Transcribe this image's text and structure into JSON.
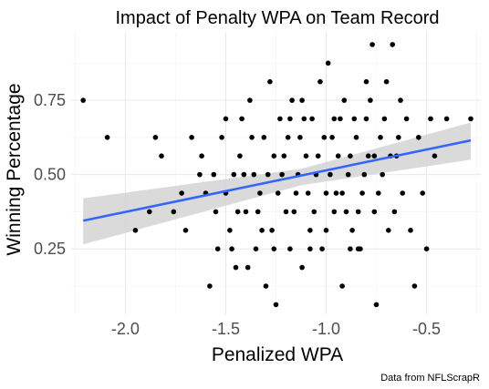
{
  "chart_data": {
    "type": "scatter",
    "title": "Impact of Penalty WPA on Team Record",
    "xlabel": "Penalized WPA",
    "ylabel": "Winning Percentage",
    "caption": "Data from NFLScrapR",
    "xlim": [
      -2.27,
      -0.23
    ],
    "ylim": [
      0.03,
      0.98
    ],
    "x_ticks": [
      -2.0,
      -1.5,
      -1.0,
      -0.5
    ],
    "x_tick_labels": [
      "-2.0",
      "-1.5",
      "-1.0",
      "-0.5"
    ],
    "y_ticks": [
      0.25,
      0.5,
      0.75
    ],
    "y_tick_labels": [
      "0.25",
      "0.50",
      "0.75"
    ],
    "grid": true,
    "points": [
      {
        "x": -2.21,
        "y": 0.75
      },
      {
        "x": -2.09,
        "y": 0.625
      },
      {
        "x": -1.95,
        "y": 0.3125
      },
      {
        "x": -1.88,
        "y": 0.375
      },
      {
        "x": -1.85,
        "y": 0.625
      },
      {
        "x": -1.82,
        "y": 0.5625
      },
      {
        "x": -1.76,
        "y": 0.375
      },
      {
        "x": -1.72,
        "y": 0.4375
      },
      {
        "x": -1.7,
        "y": 0.3125
      },
      {
        "x": -1.67,
        "y": 0.625
      },
      {
        "x": -1.63,
        "y": 0.5
      },
      {
        "x": -1.62,
        "y": 0.5625
      },
      {
        "x": -1.6,
        "y": 0.4375
      },
      {
        "x": -1.58,
        "y": 0.125
      },
      {
        "x": -1.56,
        "y": 0.5
      },
      {
        "x": -1.55,
        "y": 0.375
      },
      {
        "x": -1.52,
        "y": 0.625
      },
      {
        "x": -1.5,
        "y": 0.4375
      },
      {
        "x": -1.48,
        "y": 0.3125
      },
      {
        "x": -1.47,
        "y": 0.25
      },
      {
        "x": -1.45,
        "y": 0.1875
      },
      {
        "x": -1.43,
        "y": 0.5625
      },
      {
        "x": -1.42,
        "y": 0.6875
      },
      {
        "x": -1.4,
        "y": 0.375
      },
      {
        "x": -1.38,
        "y": 0.75
      },
      {
        "x": -1.36,
        "y": 0.5
      },
      {
        "x": -1.35,
        "y": 0.25
      },
      {
        "x": -1.33,
        "y": 0.4375
      },
      {
        "x": -1.31,
        "y": 0.625
      },
      {
        "x": -1.3,
        "y": 0.125
      },
      {
        "x": -1.28,
        "y": 0.8125
      },
      {
        "x": -1.27,
        "y": 0.3125
      },
      {
        "x": -1.26,
        "y": 0.5625
      },
      {
        "x": -1.25,
        "y": 0.0625
      },
      {
        "x": -1.23,
        "y": 0.6875
      },
      {
        "x": -1.22,
        "y": 0.5
      },
      {
        "x": -1.2,
        "y": 0.375
      },
      {
        "x": -1.18,
        "y": 0.25
      },
      {
        "x": -1.17,
        "y": 0.75
      },
      {
        "x": -1.15,
        "y": 0.4375
      },
      {
        "x": -1.13,
        "y": 0.625
      },
      {
        "x": -1.12,
        "y": 0.1875
      },
      {
        "x": -1.1,
        "y": 0.5625
      },
      {
        "x": -1.08,
        "y": 0.3125
      },
      {
        "x": -1.07,
        "y": 0.6875
      },
      {
        "x": -1.05,
        "y": 0.5
      },
      {
        "x": -1.03,
        "y": 0.8125
      },
      {
        "x": -1.02,
        "y": 0.25
      },
      {
        "x": -1.0,
        "y": 0.4375
      },
      {
        "x": -0.99,
        "y": 0.875
      },
      {
        "x": -0.97,
        "y": 0.625
      },
      {
        "x": -0.96,
        "y": 0.375
      },
      {
        "x": -0.94,
        "y": 0.5625
      },
      {
        "x": -0.92,
        "y": 0.125
      },
      {
        "x": -0.91,
        "y": 0.75
      },
      {
        "x": -0.89,
        "y": 0.5
      },
      {
        "x": -0.87,
        "y": 0.3125
      },
      {
        "x": -0.86,
        "y": 0.6875
      },
      {
        "x": -0.84,
        "y": 0.25
      },
      {
        "x": -0.82,
        "y": 0.4375
      },
      {
        "x": -0.8,
        "y": 0.8125
      },
      {
        "x": -0.79,
        "y": 0.5625
      },
      {
        "x": -0.77,
        "y": 0.9375
      },
      {
        "x": -0.76,
        "y": 0.375
      },
      {
        "x": -0.75,
        "y": 0.0625
      },
      {
        "x": -0.73,
        "y": 0.625
      },
      {
        "x": -0.72,
        "y": 0.5
      },
      {
        "x": -0.7,
        "y": 0.8125
      },
      {
        "x": -0.69,
        "y": 0.3125
      },
      {
        "x": -0.67,
        "y": 0.9375
      },
      {
        "x": -0.65,
        "y": 0.5625
      },
      {
        "x": -0.63,
        "y": 0.75
      },
      {
        "x": -0.62,
        "y": 0.4375
      },
      {
        "x": -0.6,
        "y": 0.6875
      },
      {
        "x": -0.58,
        "y": 0.3125
      },
      {
        "x": -0.56,
        "y": 0.125
      },
      {
        "x": -0.54,
        "y": 0.625
      },
      {
        "x": -0.52,
        "y": 0.4375
      },
      {
        "x": -0.5,
        "y": 0.25
      },
      {
        "x": -0.48,
        "y": 0.6875
      },
      {
        "x": -0.46,
        "y": 0.5625
      },
      {
        "x": -0.4,
        "y": 0.6875
      },
      {
        "x": -0.28,
        "y": 0.6875
      },
      {
        "x": -1.46,
        "y": 0.5
      },
      {
        "x": -1.37,
        "y": 0.625
      },
      {
        "x": -1.34,
        "y": 0.375
      },
      {
        "x": -1.29,
        "y": 0.5
      },
      {
        "x": -1.24,
        "y": 0.4375
      },
      {
        "x": -1.21,
        "y": 0.5625
      },
      {
        "x": -1.19,
        "y": 0.625
      },
      {
        "x": -1.16,
        "y": 0.375
      },
      {
        "x": -1.14,
        "y": 0.5
      },
      {
        "x": -1.11,
        "y": 0.6875
      },
      {
        "x": -1.09,
        "y": 0.4375
      },
      {
        "x": -1.06,
        "y": 0.375
      },
      {
        "x": -1.04,
        "y": 0.5625
      },
      {
        "x": -1.01,
        "y": 0.625
      },
      {
        "x": -0.98,
        "y": 0.5
      },
      {
        "x": -0.95,
        "y": 0.4375
      },
      {
        "x": -0.93,
        "y": 0.6875
      },
      {
        "x": -0.9,
        "y": 0.375
      },
      {
        "x": -0.88,
        "y": 0.5625
      },
      {
        "x": -0.85,
        "y": 0.625
      },
      {
        "x": -0.83,
        "y": 0.25
      },
      {
        "x": -0.81,
        "y": 0.5
      },
      {
        "x": -0.78,
        "y": 0.75
      },
      {
        "x": -0.74,
        "y": 0.4375
      },
      {
        "x": -0.71,
        "y": 0.6875
      },
      {
        "x": -0.68,
        "y": 0.5625
      },
      {
        "x": -0.66,
        "y": 0.375
      },
      {
        "x": -0.64,
        "y": 0.625
      },
      {
        "x": -1.54,
        "y": 0.25
      },
      {
        "x": -1.5,
        "y": 0.6875
      },
      {
        "x": -1.44,
        "y": 0.375
      },
      {
        "x": -1.41,
        "y": 0.5
      },
      {
        "x": -1.39,
        "y": 0.1875
      },
      {
        "x": -1.32,
        "y": 0.3125
      },
      {
        "x": -1.26,
        "y": 0.25
      },
      {
        "x": -1.18,
        "y": 0.6875
      },
      {
        "x": -1.12,
        "y": 0.75
      },
      {
        "x": -1.08,
        "y": 0.25
      },
      {
        "x": -1.0,
        "y": 0.3125
      },
      {
        "x": -0.96,
        "y": 0.6875
      },
      {
        "x": -0.92,
        "y": 0.4375
      },
      {
        "x": -0.88,
        "y": 0.25
      },
      {
        "x": -0.84,
        "y": 0.375
      },
      {
        "x": -0.8,
        "y": 0.6875
      },
      {
        "x": -0.76,
        "y": 0.5625
      }
    ],
    "trend": {
      "label": "linear fit",
      "x": [
        -2.21,
        -0.28
      ],
      "y": [
        0.345,
        0.615
      ],
      "ci_lower": [
        0.265,
        0.55
      ],
      "ci_upper": [
        0.42,
        0.675
      ],
      "ci_mid_x": -1.12,
      "ci_mid_lower": 0.465,
      "ci_mid_upper": 0.52
    },
    "colors": {
      "trend_line": "#3366FF",
      "ci_band": "#d3d3d3",
      "points": "#000000",
      "grid": "#ebebeb"
    }
  }
}
